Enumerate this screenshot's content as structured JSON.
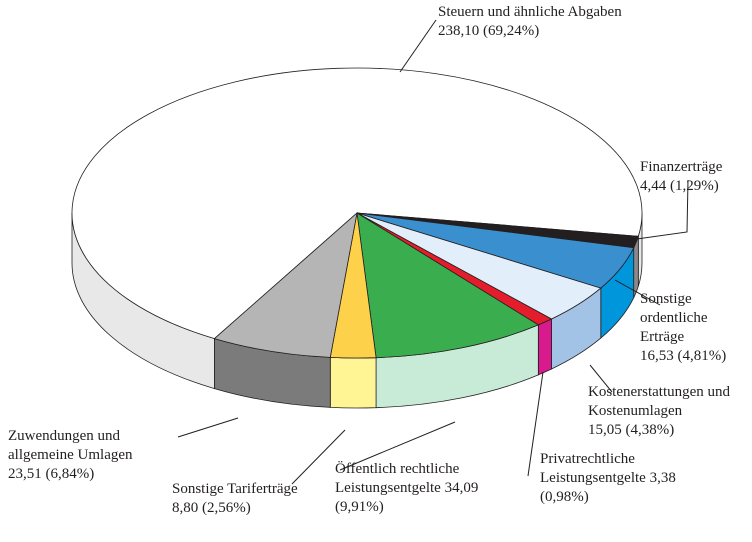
{
  "chart_data": {
    "type": "pie3d",
    "categories": [
      "Steuern und ähnliche Abgaben",
      "Finanzerträge",
      "Sonstige ordentliche Erträge",
      "Kostenerstattungen und Kostenumlagen",
      "Privatrechtliche Leistungsentgelte",
      "Öffentlich rechtliche Leistungsentgelte",
      "Sonstige Tariferträge",
      "Zuwendungen und allgemeine Umlagen"
    ],
    "values": [
      238.1,
      4.44,
      16.53,
      15.05,
      3.38,
      34.09,
      8.8,
      23.51
    ],
    "value_labels": [
      "238,10",
      "4,44",
      "16,53",
      "15,05",
      "3,38",
      "34,09",
      "8,80",
      "23,51"
    ],
    "shares": [
      69.24,
      1.29,
      4.81,
      4.38,
      0.98,
      9.91,
      2.56,
      6.84
    ],
    "share_labels": [
      "(69,24%)",
      "(1,29%)",
      "(4,81%)",
      "(4,38%)",
      "(0,98%)",
      "(9,91%)",
      "(2,56%)",
      "(6,84%)"
    ],
    "colors": [
      "#ffffff",
      "#231f20",
      "#3a8fcf",
      "#e2eefa",
      "#e31d2b",
      "#3aad4f",
      "#fdd24a",
      "#b5b5b5"
    ],
    "side_colors": [
      "#e8e8e8",
      "#8a8a8a",
      "#0096dc",
      "#a3c3e6",
      "#d81b8c",
      "#c8ebd7",
      "#fff595",
      "#7b7b7b"
    ]
  }
}
